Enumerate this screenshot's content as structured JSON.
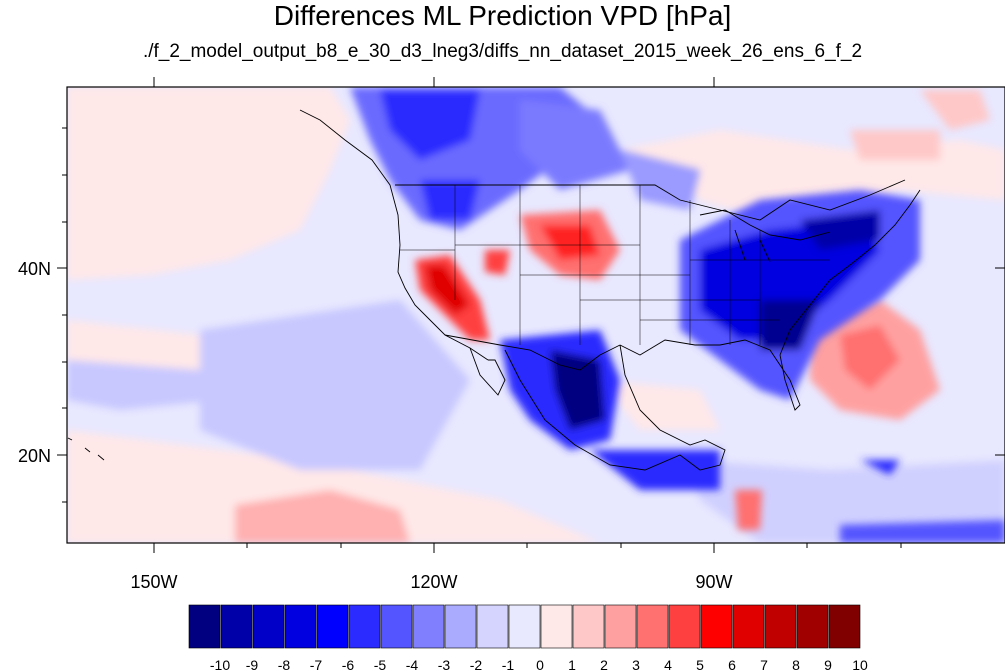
{
  "title": "Differences ML Prediction VPD [hPa]",
  "subtitle": "./f_2_model_output_b8_e_30_d3_lneg3/diffs_nn_dataset_2015_week_26_ens_6_f_2",
  "latitude_labels": [
    "40N",
    "20N"
  ],
  "longitude_labels": [
    "150W",
    "120W",
    "90W"
  ],
  "colorbar": {
    "labels": [
      "-10",
      "-9",
      "-8",
      "-7",
      "-6",
      "-5",
      "-4",
      "-3",
      "-2",
      "-1",
      "0",
      "1",
      "2",
      "3",
      "4",
      "5",
      "6",
      "7",
      "8",
      "9",
      "10"
    ],
    "colors": [
      "#000080",
      "#0000a8",
      "#0000c8",
      "#0000e0",
      "#0000ff",
      "#2b2bff",
      "#5555ff",
      "#8080ff",
      "#aaaaff",
      "#d4d4ff",
      "#e8e8ff",
      "#ffe8e8",
      "#ffc8c8",
      "#ffa0a0",
      "#ff7070",
      "#ff4040",
      "#ff0000",
      "#e00000",
      "#c00000",
      "#a00000",
      "#800000"
    ]
  }
}
